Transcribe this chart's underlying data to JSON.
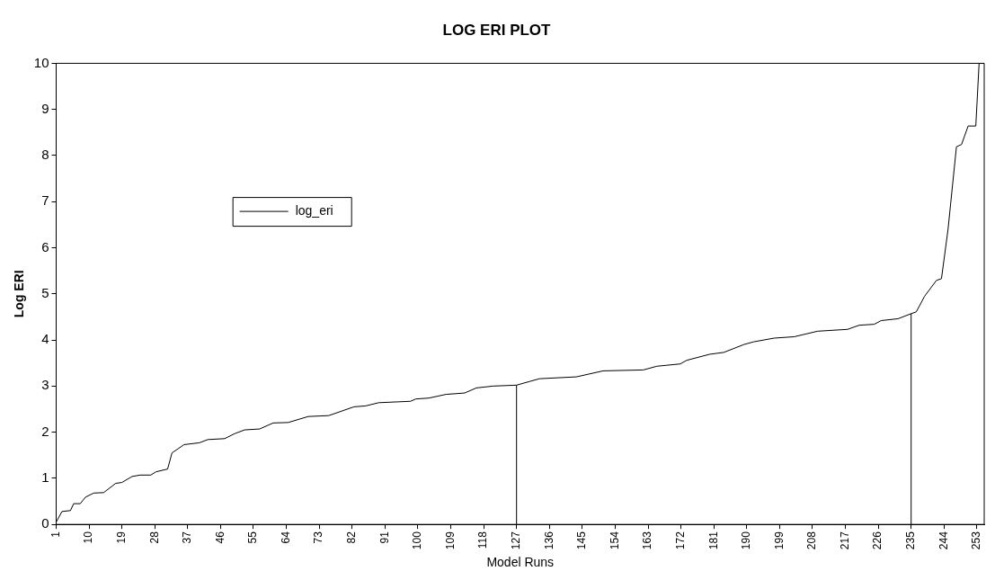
{
  "chart_data": {
    "type": "line",
    "title": "LOG ERI PLOT",
    "xlabel": "Model Runs",
    "ylabel": "Log ERI",
    "xlim": [
      1,
      255
    ],
    "xticks": [
      1,
      10,
      19,
      28,
      37,
      46,
      55,
      64,
      73,
      82,
      91,
      100,
      109,
      118,
      127,
      136,
      145,
      154,
      163,
      172,
      181,
      190,
      199,
      208,
      217,
      226,
      235,
      244,
      253
    ],
    "ylim": [
      0,
      10
    ],
    "yticks": [
      0,
      1,
      2,
      3,
      4,
      5,
      6,
      7,
      8,
      9,
      10
    ],
    "grid": false,
    "legend": "top left",
    "marker": "none",
    "line_style": "solid",
    "series": [
      {
        "name": "log_eri",
        "color": "#000000",
        "x": [
          1,
          2.6,
          4.9,
          5.8,
          7.6,
          9,
          11.3,
          14,
          17.3,
          19,
          21.8,
          24,
          26.9,
          28.3,
          31.5,
          32.7,
          36,
          40.2,
          42.5,
          47.1,
          49.9,
          52.6,
          56.7,
          60.4,
          64.5,
          70,
          75.6,
          82.5,
          85.7,
          89.3,
          98,
          99.4,
          103,
          107.7,
          112.8,
          116,
          120.6,
          127,
          130.6,
          133.3,
          143.4,
          150.7,
          161.7,
          165.4,
          171.8,
          173.6,
          179.9,
          183.7,
          189.2,
          191.9,
          197.5,
          203,
          209.4,
          217.6,
          220.8,
          224.9,
          226.8,
          231.4,
          235,
          236.4,
          238.7,
          241.9,
          243.3,
          245.1,
          247.4,
          248.8,
          250.6,
          252.7,
          253.6,
          255
        ],
        "values": [
          0.05,
          0.28,
          0.3,
          0.45,
          0.45,
          0.59,
          0.68,
          0.69,
          0.89,
          0.91,
          1.04,
          1.07,
          1.07,
          1.14,
          1.2,
          1.55,
          1.73,
          1.77,
          1.84,
          1.86,
          1.97,
          2.05,
          2.07,
          2.2,
          2.21,
          2.34,
          2.36,
          2.55,
          2.57,
          2.64,
          2.67,
          2.72,
          2.74,
          2.82,
          2.85,
          2.96,
          3.0,
          3.02,
          3.1,
          3.16,
          3.2,
          3.33,
          3.35,
          3.43,
          3.48,
          3.56,
          3.69,
          3.73,
          3.9,
          3.96,
          4.04,
          4.07,
          4.19,
          4.23,
          4.32,
          4.34,
          4.42,
          4.46,
          4.57,
          4.61,
          4.95,
          5.29,
          5.33,
          6.4,
          8.19,
          8.24,
          8.64,
          8.64,
          10.0,
          10.0
        ]
      },
      {
        "color": "#000000",
        "x": [
          127,
          127
        ],
        "values": [
          0,
          3.02
        ]
      },
      {
        "color": "#000000",
        "x": [
          235,
          235
        ],
        "values": [
          0,
          4.57
        ]
      }
    ]
  }
}
